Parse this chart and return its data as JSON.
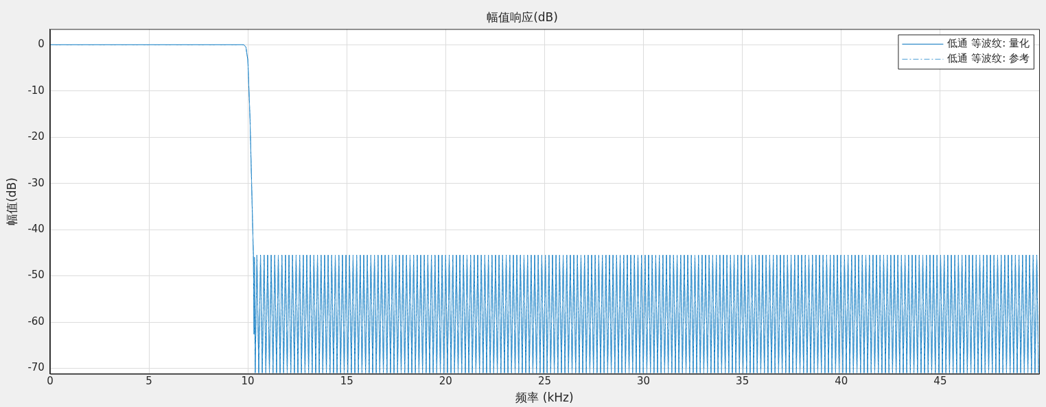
{
  "chart_data": {
    "type": "line",
    "title": "幅值响应(dB)",
    "xlabel": "频率 (kHz)",
    "ylabel": "幅值(dB)",
    "xlim": [
      0,
      50
    ],
    "xticks": [
      0,
      5,
      10,
      15,
      20,
      25,
      30,
      35,
      40,
      45
    ],
    "ylim": [
      -71.2,
      3.4
    ],
    "yticks": [
      -70,
      -60,
      -50,
      -40,
      -30,
      -20,
      -10,
      0
    ],
    "grid": true,
    "legend": "top right",
    "marker": "none",
    "x": [
      0,
      9.8,
      9.9,
      10,
      10.11,
      10.23,
      10.28,
      10.31,
      10.33,
      10.37,
      10.46,
      10.55,
      10.64,
      10.73,
      10.82,
      10.91,
      11.0,
      11.09,
      11.18,
      11.27,
      11.36,
      11.45,
      11.54,
      11.63,
      11.72,
      11.81,
      11.9,
      11.99,
      12.08,
      12.17,
      12.26,
      12.35,
      12.44,
      12.53,
      12.62,
      12.71,
      12.8,
      12.89,
      12.98,
      13.07,
      13.16,
      13.25,
      13.34,
      13.43,
      13.52,
      13.61,
      13.7,
      13.79,
      13.88,
      13.97,
      14.06,
      14.15,
      14.24,
      14.33,
      14.42,
      14.51,
      14.6,
      14.69,
      14.78,
      14.87,
      14.96,
      15.05,
      15.14,
      15.23,
      15.32,
      15.41,
      15.5,
      15.59,
      15.68,
      15.77,
      15.86,
      15.95,
      16.04,
      16.13,
      16.22,
      16.31,
      16.4,
      16.49,
      16.58,
      16.67,
      16.76,
      16.85,
      16.94,
      17.03,
      17.12,
      17.21,
      17.3,
      17.39,
      17.48,
      17.57,
      17.66,
      17.75,
      17.84,
      17.93,
      18.02,
      18.11,
      18.2,
      18.29,
      18.38,
      18.47,
      18.56,
      18.65,
      18.74,
      18.83,
      18.92,
      19.01,
      19.1,
      19.19,
      19.28,
      19.37,
      19.46,
      19.55,
      19.64,
      19.73,
      19.82,
      19.91,
      20.0,
      20.09,
      20.18,
      20.27,
      20.36,
      20.45,
      20.54,
      20.63,
      20.72,
      20.81,
      20.9,
      20.99,
      21.08,
      21.17,
      21.26,
      21.35,
      21.44,
      21.53,
      21.62,
      21.71,
      21.8,
      21.89,
      21.98,
      22.07,
      22.16,
      22.25,
      22.34,
      22.43,
      22.52,
      22.61,
      22.7,
      22.79,
      22.88,
      22.97,
      23.06,
      23.15,
      23.24,
      23.33,
      23.42,
      23.51,
      23.6,
      23.69,
      23.78,
      23.87,
      23.96,
      24.05,
      24.14,
      24.23,
      24.32,
      24.41,
      24.5,
      24.59,
      24.68,
      24.77,
      24.86,
      24.95,
      25.04,
      25.13,
      25.22,
      25.31,
      25.4,
      25.49,
      25.58,
      25.67,
      25.76,
      25.85,
      25.94,
      26.03,
      26.12,
      26.21,
      26.3,
      26.39,
      26.48,
      26.57,
      26.66,
      26.75,
      26.84,
      26.93,
      27.02,
      27.11,
      27.2,
      27.29,
      27.38,
      27.47,
      27.56,
      27.65,
      27.74,
      27.83,
      27.92,
      28.01,
      28.1,
      28.19,
      28.28,
      28.37,
      28.46,
      28.55,
      28.64,
      28.73,
      28.82,
      28.91,
      29.0,
      29.09,
      29.18,
      29.27,
      29.36,
      29.45,
      29.54,
      29.63,
      29.72,
      29.81,
      29.9,
      29.99,
      30.08,
      30.17,
      30.26,
      30.35,
      30.44,
      30.53,
      30.62,
      30.71,
      30.8,
      30.89,
      30.98,
      31.07,
      31.16,
      31.25,
      31.34,
      31.43,
      31.52,
      31.61,
      31.7,
      31.79,
      31.88,
      31.97,
      32.06,
      32.15,
      32.24,
      32.33,
      32.42,
      32.51,
      32.6,
      32.69,
      32.78,
      32.87,
      32.96,
      33.05,
      33.14,
      33.23,
      33.32,
      33.41,
      33.5,
      33.59,
      33.68,
      33.77,
      33.86,
      33.95,
      34.04,
      34.13,
      34.22,
      34.31,
      34.4,
      34.49,
      34.58,
      34.67,
      34.76,
      34.85,
      34.94,
      35.03,
      35.12,
      35.21,
      35.3,
      35.39,
      35.48,
      35.57,
      35.66,
      35.75,
      35.84,
      35.93,
      36.02,
      36.11,
      36.2,
      36.29,
      36.38,
      36.47,
      36.56,
      36.65,
      36.74,
      36.83,
      36.92,
      37.01,
      37.1,
      37.19,
      37.28,
      37.37,
      37.46,
      37.55,
      37.64,
      37.73,
      37.82,
      37.91,
      38.0,
      38.09,
      38.18,
      38.27,
      38.36,
      38.45,
      38.54,
      38.63,
      38.72,
      38.81,
      38.9,
      38.99,
      39.08,
      39.17,
      39.26,
      39.35,
      39.44,
      39.53,
      39.62,
      39.71,
      39.8,
      39.89,
      39.98,
      40.07,
      40.16,
      40.25,
      40.34,
      40.43,
      40.52,
      40.61,
      40.7,
      40.79,
      40.88,
      40.97,
      41.06,
      41.15,
      41.24,
      41.33,
      41.42,
      41.51,
      41.6,
      41.69,
      41.78,
      41.87,
      41.96,
      42.05,
      42.14,
      42.23,
      42.32,
      42.41,
      42.5,
      42.59,
      42.68,
      42.77,
      42.86,
      42.95,
      43.04,
      43.13,
      43.22,
      43.31,
      43.4,
      43.49,
      43.58,
      43.67,
      43.76,
      43.85,
      43.94,
      44.03,
      44.12,
      44.21,
      44.3,
      44.39,
      44.48,
      44.57,
      44.66,
      44.75,
      44.84,
      44.93,
      45.02,
      45.11,
      45.2,
      45.29,
      45.38,
      45.47,
      45.56,
      45.65,
      45.74,
      45.83,
      45.92,
      46.01,
      46.1,
      46.19,
      46.28,
      46.37,
      46.46,
      46.55,
      46.64,
      46.73,
      46.82,
      46.91,
      47.0,
      47.09,
      47.18,
      47.27,
      47.36,
      47.45,
      47.54,
      47.63,
      47.72,
      47.81,
      47.9,
      47.99,
      48.08,
      48.17,
      48.26,
      48.35,
      48.44,
      48.53,
      48.62,
      48.71,
      48.8,
      48.89,
      48.98,
      49.07,
      49.16,
      49.25,
      49.34,
      49.43,
      49.52,
      49.61,
      49.7,
      49.79,
      49.88,
      49.97
    ],
    "series": [
      {
        "name": "低通 等波纹: 量化",
        "color": "#0072bd",
        "line_style": "solid",
        "values": [
          0,
          0,
          -0.5,
          -3.3,
          -16,
          -37,
          -45.5,
          -62.6,
          -46,
          -71,
          -45.5,
          -71,
          -45.5,
          -71,
          -45.5,
          -71,
          -45.5,
          -71,
          -45.5,
          -71,
          -45.5,
          -71,
          -45.5,
          -71,
          -45.5,
          -71,
          -45.5,
          -71,
          -45.5,
          -71,
          -45.5,
          -71,
          -45.5,
          -71,
          -45.5,
          -71,
          -45.5,
          -71,
          -45.5,
          -71,
          -45.5,
          -71,
          -45.5,
          -71,
          -45.5,
          -71,
          -45.5,
          -71,
          -45.5,
          -71,
          -45.5,
          -71,
          -45.5,
          -71,
          -45.5,
          -71,
          -45.5,
          -71,
          -45.5,
          -71,
          -45.5,
          -71,
          -45.5,
          -71,
          -45.5,
          -71,
          -45.5,
          -71,
          -45.5,
          -71,
          -45.5,
          -71,
          -45.5,
          -71,
          -45.5,
          -71,
          -45.5,
          -71,
          -45.5,
          -71,
          -45.5,
          -71,
          -45.5,
          -71,
          -45.5,
          -71,
          -45.5,
          -71,
          -45.5,
          -71,
          -45.5,
          -71,
          -45.5,
          -71,
          -45.5,
          -71,
          -45.5,
          -71,
          -45.5,
          -71,
          -45.5,
          -71,
          -45.5,
          -71,
          -45.5,
          -71,
          -45.5,
          -71,
          -45.5,
          -71,
          -45.5,
          -71,
          -45.5,
          -71,
          -45.5,
          -71,
          -45.5,
          -71,
          -45.5,
          -71,
          -45.5,
          -71,
          -45.5,
          -71,
          -45.5,
          -71,
          -45.5,
          -71,
          -45.5,
          -71,
          -45.5,
          -71,
          -45.5,
          -71,
          -45.5,
          -71,
          -45.5,
          -71,
          -45.5,
          -71,
          -45.5,
          -71,
          -45.5,
          -71,
          -45.5,
          -71,
          -45.5,
          -71,
          -45.5,
          -71,
          -45.5,
          -71,
          -45.5,
          -71,
          -45.5,
          -71,
          -45.5,
          -71,
          -45.5,
          -71,
          -45.5,
          -71,
          -45.5,
          -71,
          -45.5,
          -71,
          -45.5,
          -71,
          -45.5,
          -71,
          -45.5,
          -71,
          -45.5,
          -71,
          -45.5,
          -71,
          -45.5,
          -71,
          -45.5,
          -71,
          -45.5,
          -71,
          -45.5,
          -71,
          -45.5,
          -71,
          -45.5,
          -71,
          -45.5,
          -71,
          -45.5,
          -71,
          -45.5,
          -71,
          -45.5,
          -71,
          -45.5,
          -71,
          -45.5,
          -71,
          -45.5,
          -71,
          -45.5,
          -71,
          -45.5,
          -71,
          -45.5,
          -71,
          -45.5,
          -71,
          -45.5,
          -71,
          -45.5,
          -71,
          -45.5,
          -71,
          -45.5,
          -71,
          -45.5,
          -71,
          -45.5,
          -71,
          -45.5,
          -71,
          -45.5,
          -71,
          -45.5,
          -71,
          -45.5,
          -71,
          -45.5,
          -71,
          -45.5,
          -71,
          -45.5,
          -71,
          -45.5,
          -71,
          -45.5,
          -71,
          -45.5,
          -71,
          -45.5,
          -71,
          -45.5,
          -71,
          -45.5,
          -71,
          -45.5,
          -71,
          -45.5,
          -71,
          -45.5,
          -71,
          -45.5,
          -71,
          -45.5,
          -71,
          -45.5,
          -71,
          -45.5,
          -71,
          -45.5,
          -71,
          -45.5,
          -71,
          -45.5,
          -71,
          -45.5,
          -71,
          -45.5,
          -71,
          -45.5,
          -71,
          -45.5,
          -71,
          -45.5,
          -71,
          -45.5,
          -71,
          -45.5,
          -71,
          -45.5,
          -71,
          -45.5,
          -71,
          -45.5,
          -71,
          -45.5,
          -71,
          -45.5,
          -71,
          -45.5,
          -71,
          -45.5,
          -71,
          -45.5,
          -71,
          -45.5,
          -71,
          -45.5,
          -71,
          -45.5,
          -71,
          -45.5,
          -71,
          -45.5,
          -71,
          -45.5,
          -71,
          -45.5,
          -71,
          -45.5,
          -71,
          -45.5,
          -71,
          -45.5,
          -71,
          -45.5,
          -71,
          -45.5,
          -71,
          -45.5,
          -71,
          -45.5,
          -71,
          -45.5,
          -71,
          -45.5,
          -71,
          -45.5,
          -71,
          -45.5,
          -71,
          -45.5,
          -71,
          -45.5,
          -71,
          -45.5,
          -71,
          -45.5,
          -71,
          -45.5,
          -71,
          -45.5,
          -71,
          -45.5,
          -71,
          -45.5,
          -71,
          -45.5,
          -71,
          -45.5,
          -71,
          -45.5,
          -71,
          -45.5,
          -71,
          -45.5,
          -71,
          -45.5,
          -71,
          -45.5,
          -71,
          -45.5,
          -71,
          -45.5,
          -71,
          -45.5,
          -71,
          -45.5,
          -71,
          -45.5,
          -71,
          -45.5,
          -71,
          -45.5,
          -71,
          -45.5,
          -71,
          -45.5,
          -71,
          -45.5,
          -71,
          -45.5,
          -71,
          -45.5,
          -71,
          -45.5,
          -71,
          -45.5,
          -71,
          -45.5,
          -71,
          -45.5,
          -71,
          -45.5,
          -71,
          -45.5,
          -71,
          -45.5,
          -71,
          -45.5,
          -71,
          -45.5,
          -71,
          -45.5,
          -71,
          -45.5,
          -71,
          -45.5,
          -71,
          -45.5,
          -71,
          -45.5,
          -71,
          -45.5,
          -71,
          -45.5,
          -71,
          -45.5,
          -71,
          -45.5,
          -71,
          -45.5,
          -71,
          -45.5,
          -71,
          -45.5,
          -71,
          -45.5,
          -71,
          -45.5,
          -71,
          -45.5,
          -71,
          -45.5,
          -71,
          -45.5,
          -71,
          -45.5,
          -71,
          -45.5,
          -71,
          -45.5,
          -71,
          -45.5,
          -71,
          -45.5,
          -71
        ]
      },
      {
        "name": "低通 等波纹: 参考",
        "color": "#4d9fd6",
        "line_style": "dashdot",
        "values": [
          0,
          0,
          -0.5,
          -3.3,
          -16,
          -37,
          -45.5,
          -62.6,
          -46,
          -71,
          -45.5,
          -71,
          -45.5,
          -71,
          -45.5,
          -71,
          -45.5,
          -71,
          -45.5,
          -71,
          -45.5,
          -71,
          -45.5,
          -71,
          -45.5,
          -71,
          -45.5,
          -71,
          -45.5,
          -71,
          -45.5,
          -71,
          -45.5,
          -71,
          -45.5,
          -71,
          -45.5,
          -71,
          -45.5,
          -71,
          -45.5,
          -71,
          -45.5,
          -71,
          -45.5,
          -71,
          -45.5,
          -71,
          -45.5,
          -71,
          -45.5,
          -71,
          -45.5,
          -71,
          -45.5,
          -71,
          -45.5,
          -71,
          -45.5,
          -71,
          -45.5,
          -71,
          -45.5,
          -71,
          -45.5,
          -71,
          -45.5,
          -71,
          -45.5,
          -71,
          -45.5,
          -71,
          -45.5,
          -71,
          -45.5,
          -71,
          -45.5,
          -71,
          -45.5,
          -71,
          -45.5,
          -71,
          -45.5,
          -71,
          -45.5,
          -71,
          -45.5,
          -71,
          -45.5,
          -71,
          -45.5,
          -71,
          -45.5,
          -71,
          -45.5,
          -71,
          -45.5,
          -71,
          -45.5,
          -71,
          -45.5,
          -71,
          -45.5,
          -71,
          -45.5,
          -71,
          -45.5,
          -71,
          -45.5,
          -71,
          -45.5,
          -71,
          -45.5,
          -71,
          -45.5,
          -71,
          -45.5,
          -71,
          -45.5,
          -71,
          -45.5,
          -71,
          -45.5,
          -71,
          -45.5,
          -71,
          -45.5,
          -71,
          -45.5,
          -71,
          -45.5,
          -71,
          -45.5,
          -71,
          -45.5,
          -71,
          -45.5,
          -71,
          -45.5,
          -71,
          -45.5,
          -71,
          -45.5,
          -71,
          -45.5,
          -71,
          -45.5,
          -71,
          -45.5,
          -71,
          -45.5,
          -71,
          -45.5,
          -71,
          -45.5,
          -71,
          -45.5,
          -71,
          -45.5,
          -71,
          -45.5,
          -71,
          -45.5,
          -71,
          -45.5,
          -71,
          -45.5,
          -71,
          -45.5,
          -71,
          -45.5,
          -71,
          -45.5,
          -71,
          -45.5,
          -71,
          -45.5,
          -71,
          -45.5,
          -71,
          -45.5,
          -71,
          -45.5,
          -71,
          -45.5,
          -71,
          -45.5,
          -71,
          -45.5,
          -71,
          -45.5,
          -71,
          -45.5,
          -71,
          -45.5,
          -71,
          -45.5,
          -71,
          -45.5,
          -71,
          -45.5,
          -71,
          -45.5,
          -71,
          -45.5,
          -71,
          -45.5,
          -71,
          -45.5,
          -71,
          -45.5,
          -71,
          -45.5,
          -71,
          -45.5,
          -71,
          -45.5,
          -71,
          -45.5,
          -71,
          -45.5,
          -71,
          -45.5,
          -71,
          -45.5,
          -71,
          -45.5,
          -71,
          -45.5,
          -71,
          -45.5,
          -71,
          -45.5,
          -71,
          -45.5,
          -71,
          -45.5,
          -71,
          -45.5,
          -71,
          -45.5,
          -71,
          -45.5,
          -71,
          -45.5,
          -71,
          -45.5,
          -71,
          -45.5,
          -71,
          -45.5,
          -71,
          -45.5,
          -71,
          -45.5,
          -71,
          -45.5,
          -71,
          -45.5,
          -71,
          -45.5,
          -71,
          -45.5,
          -71,
          -45.5,
          -71,
          -45.5,
          -71,
          -45.5,
          -71,
          -45.5,
          -71,
          -45.5,
          -71,
          -45.5,
          -71,
          -45.5,
          -71,
          -45.5,
          -71,
          -45.5,
          -71,
          -45.5,
          -71,
          -45.5,
          -71,
          -45.5,
          -71,
          -45.5,
          -71,
          -45.5,
          -71,
          -45.5,
          -71,
          -45.5,
          -71,
          -45.5,
          -71,
          -45.5,
          -71,
          -45.5,
          -71,
          -45.5,
          -71,
          -45.5,
          -71,
          -45.5,
          -71,
          -45.5,
          -71,
          -45.5,
          -71,
          -45.5,
          -71,
          -45.5,
          -71,
          -45.5,
          -71,
          -45.5,
          -71,
          -45.5,
          -71,
          -45.5,
          -71,
          -45.5,
          -71,
          -45.5,
          -71,
          -45.5,
          -71,
          -45.5,
          -71,
          -45.5,
          -71,
          -45.5,
          -71,
          -45.5,
          -71,
          -45.5,
          -71,
          -45.5,
          -71,
          -45.5,
          -71,
          -45.5,
          -71,
          -45.5,
          -71,
          -45.5,
          -71,
          -45.5,
          -71,
          -45.5,
          -71,
          -45.5,
          -71,
          -45.5,
          -71,
          -45.5,
          -71,
          -45.5,
          -71,
          -45.5,
          -71,
          -45.5,
          -71,
          -45.5,
          -71,
          -45.5,
          -71,
          -45.5,
          -71,
          -45.5,
          -71,
          -45.5,
          -71,
          -45.5,
          -71,
          -45.5,
          -71,
          -45.5,
          -71,
          -45.5,
          -71,
          -45.5,
          -71,
          -45.5,
          -71,
          -45.5,
          -71,
          -45.5,
          -71,
          -45.5,
          -71,
          -45.5,
          -71,
          -45.5,
          -71,
          -45.5,
          -71,
          -45.5,
          -71,
          -45.5,
          -71,
          -45.5,
          -71,
          -45.5,
          -71,
          -45.5,
          -71,
          -45.5,
          -71,
          -45.5,
          -71,
          -45.5,
          -71,
          -45.5,
          -71,
          -45.5,
          -71,
          -45.5,
          -71,
          -45.5,
          -71,
          -45.5,
          -71,
          -45.5,
          -71,
          -45.5,
          -71,
          -45.5,
          -71,
          -45.5,
          -71,
          -45.5,
          -71,
          -45.5,
          -71,
          -45.5,
          -71,
          -45.5,
          -71,
          -45.5,
          -71,
          -45.5,
          -71,
          -45.5,
          -71,
          -45.5,
          -71
        ]
      }
    ]
  }
}
